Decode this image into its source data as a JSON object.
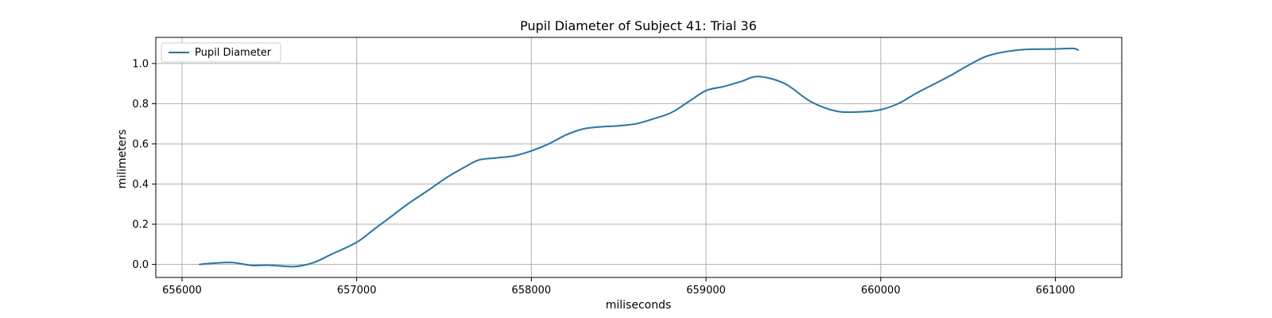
{
  "chart_data": {
    "type": "line",
    "title": "Pupil Diameter of Subject 41: Trial 36",
    "xlabel": "miliseconds",
    "ylabel": "milimeters",
    "xlim": [
      655850,
      661380
    ],
    "ylim": [
      -0.065,
      1.13
    ],
    "xticks": [
      656000,
      657000,
      658000,
      659000,
      660000,
      661000
    ],
    "yticks": [
      0.0,
      0.2,
      0.4,
      0.6,
      0.8,
      1.0
    ],
    "xtick_labels": [
      "656000",
      "657000",
      "658000",
      "659000",
      "660000",
      "661000"
    ],
    "ytick_labels": [
      "0.0",
      "0.2",
      "0.4",
      "0.6",
      "0.8",
      "1.0"
    ],
    "grid": true,
    "legend_position": "top-left",
    "series": [
      {
        "name": "Pupil Diameter",
        "color": "#1f77b4",
        "x": [
          656100,
          656200,
          656290,
          656400,
          656500,
          656640,
          656750,
          656850,
          657000,
          657100,
          657200,
          657300,
          657420,
          657520,
          657620,
          657700,
          657800,
          657900,
          658000,
          658100,
          658200,
          658300,
          658400,
          658500,
          658600,
          658700,
          658800,
          658900,
          659000,
          659100,
          659200,
          659300,
          659450,
          659600,
          659750,
          659900,
          660000,
          660100,
          660200,
          660300,
          660400,
          660500,
          660620,
          660800,
          661000,
          661100,
          661130
        ],
        "y": [
          0.0,
          0.007,
          0.009,
          -0.005,
          -0.004,
          -0.011,
          0.008,
          0.048,
          0.11,
          0.175,
          0.24,
          0.305,
          0.375,
          0.435,
          0.485,
          0.52,
          0.53,
          0.54,
          0.565,
          0.6,
          0.645,
          0.675,
          0.685,
          0.69,
          0.7,
          0.725,
          0.755,
          0.81,
          0.865,
          0.885,
          0.91,
          0.935,
          0.9,
          0.81,
          0.762,
          0.76,
          0.77,
          0.8,
          0.85,
          0.895,
          0.94,
          0.99,
          1.04,
          1.068,
          1.072,
          1.075,
          1.067
        ]
      }
    ]
  }
}
